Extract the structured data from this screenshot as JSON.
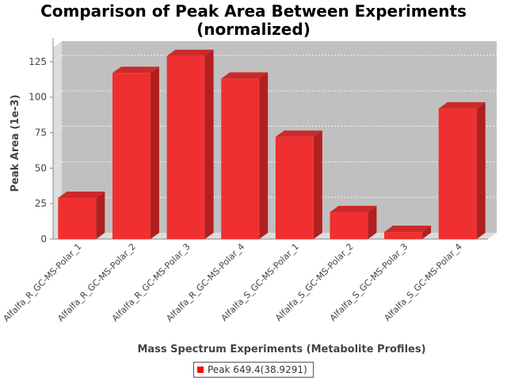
{
  "chart_data": {
    "type": "bar",
    "title_line1": "Comparison of Peak Area Between Experiments",
    "title_line2": "(normalized)",
    "xlabel": "Mass Spectrum Experiments (Metabolite Profiles)",
    "ylabel": "Peak Area (1e-3)",
    "categories": [
      "Alfalfa_R_GC-MS-Polar_1",
      "Alfalfa_R_GC-MS-Polar_2",
      "Alfalfa_R_GC-MS-Polar_3",
      "Alfalfa_R_GC-MS-Polar_4",
      "Alfalfa_S_GC-MS-Polar_1",
      "Alfalfa_S_GC-MS-Polar_2",
      "Alfalfa_S_GC-MS-Polar_3",
      "Alfalfa_S_GC-MS-Polar_4"
    ],
    "series": [
      {
        "name": "Peak 649.4(38.9291)",
        "values": [
          29,
          117,
          129,
          113,
          72,
          19,
          5,
          92
        ]
      }
    ],
    "ylim": [
      0,
      135
    ],
    "yticks": [
      0,
      25,
      50,
      75,
      100,
      125
    ],
    "grid": true,
    "legend_position": "bottom",
    "colors": {
      "bar": "#ff0000",
      "plot_background": "#c0c0c0",
      "grid": "#ffffff"
    }
  }
}
